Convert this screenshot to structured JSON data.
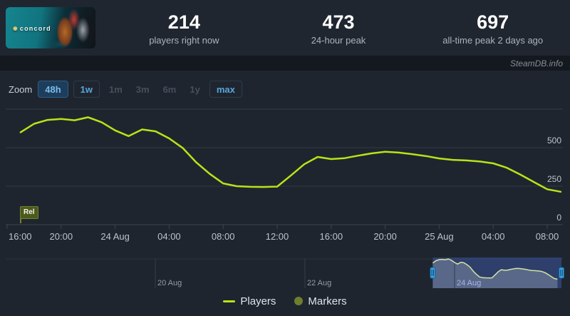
{
  "header": {
    "game_logo_text": "concord",
    "stats": [
      {
        "value": "214",
        "label": "players right now"
      },
      {
        "value": "473",
        "label": "24-hour peak"
      },
      {
        "value": "697",
        "label": "all-time peak 2 days ago"
      }
    ]
  },
  "watermark": "SteamDB.info",
  "zoom": {
    "label": "Zoom",
    "buttons": [
      {
        "label": "48h",
        "state": "selected"
      },
      {
        "label": "1w",
        "state": "normal"
      },
      {
        "label": "1m",
        "state": "disabled"
      },
      {
        "label": "3m",
        "state": "disabled"
      },
      {
        "label": "6m",
        "state": "disabled"
      },
      {
        "label": "1y",
        "state": "disabled"
      },
      {
        "label": "max",
        "state": "normal"
      }
    ]
  },
  "legend": [
    {
      "label": "Players",
      "marker": "line",
      "color": "#b6e418"
    },
    {
      "label": "Markers",
      "marker": "circle",
      "color": "#6e7e2e"
    }
  ],
  "chart_data": {
    "type": "line",
    "title": "Concurrent players",
    "x_unit": "hours since 23 Aug 16:00",
    "ylim": [
      0,
      810
    ],
    "grid": "horizontal-only",
    "legend_position": "bottom-center",
    "y_ticks": [
      {
        "v": 0,
        "label": "0"
      },
      {
        "v": 250,
        "label": "250"
      },
      {
        "v": 500,
        "label": "500"
      },
      {
        "v": 750,
        "label": ""
      }
    ],
    "x_ticks": [
      {
        "t": 0,
        "label": "16:00"
      },
      {
        "t": 4,
        "label": "20:00"
      },
      {
        "t": 8,
        "label": "24 Aug"
      },
      {
        "t": 12,
        "label": "04:00"
      },
      {
        "t": 16,
        "label": "08:00"
      },
      {
        "t": 20,
        "label": "12:00"
      },
      {
        "t": 24,
        "label": "16:00"
      },
      {
        "t": 28,
        "label": "20:00"
      },
      {
        "t": 32,
        "label": "25 Aug"
      },
      {
        "t": 36,
        "label": "04:00"
      },
      {
        "t": 40,
        "label": "08:00"
      }
    ],
    "series": [
      {
        "name": "Players",
        "color": "#b6e418",
        "points": [
          [
            1,
            600
          ],
          [
            2,
            655
          ],
          [
            3,
            680
          ],
          [
            4,
            686
          ],
          [
            5,
            678
          ],
          [
            6,
            697
          ],
          [
            7,
            665
          ],
          [
            8,
            612
          ],
          [
            9,
            575
          ],
          [
            10,
            618
          ],
          [
            11,
            606
          ],
          [
            12,
            560
          ],
          [
            13,
            498
          ],
          [
            14,
            405
          ],
          [
            15,
            330
          ],
          [
            16,
            268
          ],
          [
            17,
            250
          ],
          [
            18,
            246
          ],
          [
            19,
            245
          ],
          [
            20,
            247
          ],
          [
            21,
            318
          ],
          [
            22,
            392
          ],
          [
            23,
            440
          ],
          [
            24,
            426
          ],
          [
            25,
            432
          ],
          [
            26,
            448
          ],
          [
            27,
            463
          ],
          [
            28,
            473
          ],
          [
            29,
            468
          ],
          [
            30,
            458
          ],
          [
            31,
            446
          ],
          [
            32,
            430
          ],
          [
            33,
            421
          ],
          [
            34,
            417
          ],
          [
            35,
            410
          ],
          [
            36,
            398
          ],
          [
            37,
            370
          ],
          [
            38,
            326
          ],
          [
            39,
            278
          ],
          [
            40,
            230
          ],
          [
            41,
            214
          ]
        ]
      }
    ],
    "flag": {
      "label": "Rel",
      "t": 1,
      "meaning": "release marker"
    },
    "navigator": {
      "axis_unit": "days since 18 Aug 00:00",
      "ticks": [
        {
          "d": 2,
          "label": "20 Aug"
        },
        {
          "d": 4,
          "label": "22 Aug"
        },
        {
          "d": 6,
          "label": "24 Aug"
        }
      ],
      "window": {
        "d0": 5.708,
        "d1": 7.429
      },
      "line_color": "#d5e4a2",
      "window_color": "rgba(62,90,170,0.5)",
      "handle_color": "#35a2e8"
    }
  }
}
